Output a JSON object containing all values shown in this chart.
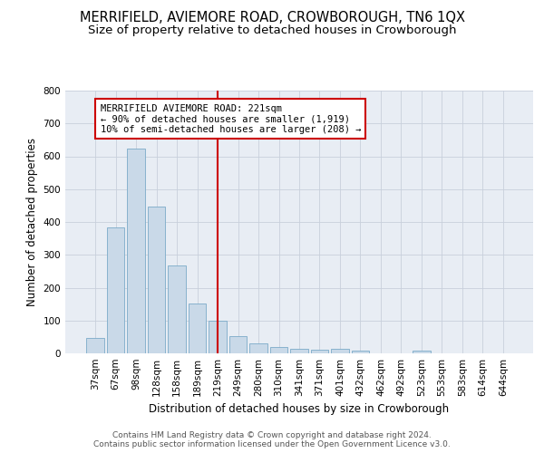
{
  "title": "MERRIFIELD, AVIEMORE ROAD, CROWBOROUGH, TN6 1QX",
  "subtitle": "Size of property relative to detached houses in Crowborough",
  "xlabel": "Distribution of detached houses by size in Crowborough",
  "ylabel": "Number of detached properties",
  "categories": [
    "37sqm",
    "67sqm",
    "98sqm",
    "128sqm",
    "158sqm",
    "189sqm",
    "219sqm",
    "249sqm",
    "280sqm",
    "310sqm",
    "341sqm",
    "371sqm",
    "401sqm",
    "432sqm",
    "462sqm",
    "492sqm",
    "523sqm",
    "553sqm",
    "583sqm",
    "614sqm",
    "644sqm"
  ],
  "values": [
    47,
    383,
    623,
    447,
    268,
    153,
    98,
    52,
    29,
    18,
    15,
    12,
    13,
    8,
    0,
    0,
    8,
    0,
    0,
    0,
    0
  ],
  "bar_color": "#c9d9e8",
  "bar_edge_color": "#7baac8",
  "vline_x_index": 6,
  "vline_color": "#cc0000",
  "annotation_text": "MERRIFIELD AVIEMORE ROAD: 221sqm\n← 90% of detached houses are smaller (1,919)\n10% of semi-detached houses are larger (208) →",
  "annotation_box_color": "#ffffff",
  "annotation_box_edge": "#cc0000",
  "ylim": [
    0,
    800
  ],
  "yticks": [
    0,
    100,
    200,
    300,
    400,
    500,
    600,
    700,
    800
  ],
  "grid_color": "#c8d0dc",
  "background_color": "#e8edf4",
  "footer_line1": "Contains HM Land Registry data © Crown copyright and database right 2024.",
  "footer_line2": "Contains public sector information licensed under the Open Government Licence v3.0.",
  "title_fontsize": 10.5,
  "subtitle_fontsize": 9.5,
  "xlabel_fontsize": 8.5,
  "ylabel_fontsize": 8.5,
  "tick_fontsize": 7.5,
  "footer_fontsize": 6.5,
  "ann_fontsize": 7.5
}
